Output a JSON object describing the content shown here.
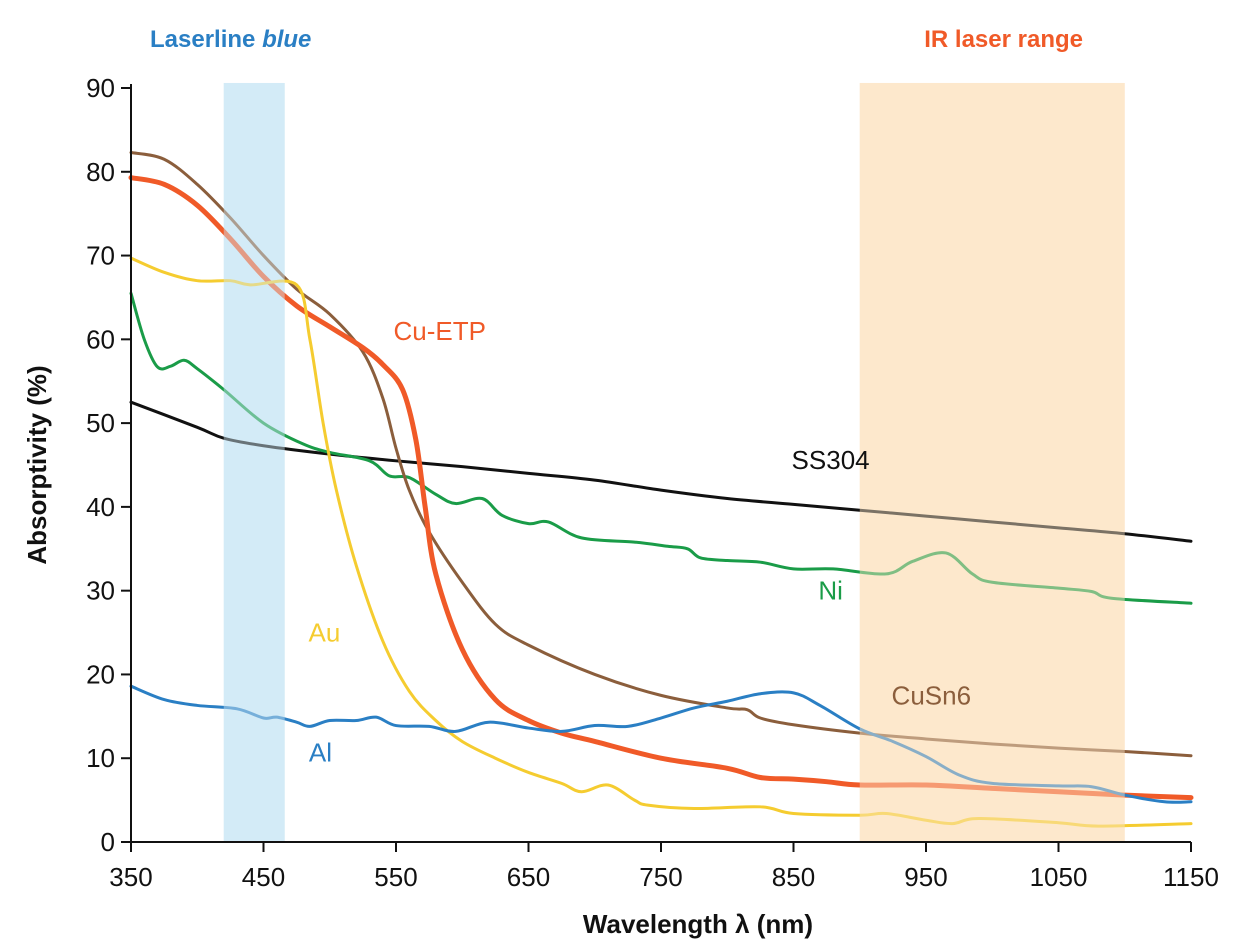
{
  "chart_data": {
    "type": "line",
    "xlabel": "Wavelength λ (nm)",
    "ylabel": "Absorptivity (%)",
    "xlim": [
      350,
      1150
    ],
    "ylim": [
      0,
      90
    ],
    "xticks": [
      350,
      450,
      550,
      650,
      750,
      850,
      950,
      1050,
      1150
    ],
    "yticks": [
      0,
      10,
      20,
      30,
      40,
      50,
      60,
      70,
      80,
      90
    ],
    "grid": false,
    "bands": [
      {
        "label_prefix": "Laserline ",
        "label_emph": "blue",
        "range": [
          420,
          466
        ],
        "color": "#d3ebf7",
        "label_color": "#2a7fc4"
      },
      {
        "label_prefix": "IR laser range",
        "label_emph": "",
        "range": [
          900,
          1100
        ],
        "color": "#fde8cc",
        "label_color": "#f05a28"
      }
    ],
    "series": [
      {
        "name": "SS304",
        "color": "#111111",
        "width": 3,
        "label_at": [
          878,
          45.6
        ],
        "points": [
          [
            350,
            52.5
          ],
          [
            400,
            49.5
          ],
          [
            420,
            48.2
          ],
          [
            450,
            47.3
          ],
          [
            500,
            46.3
          ],
          [
            550,
            45.5
          ],
          [
            600,
            44.8
          ],
          [
            650,
            44
          ],
          [
            700,
            43.2
          ],
          [
            750,
            42
          ],
          [
            800,
            41
          ],
          [
            850,
            40.3
          ],
          [
            900,
            39.6
          ],
          [
            950,
            38.9
          ],
          [
            1000,
            38.2
          ],
          [
            1050,
            37.5
          ],
          [
            1100,
            36.8
          ],
          [
            1150,
            35.9
          ]
        ]
      },
      {
        "name": "Ni",
        "color": "#1a9c48",
        "width": 3,
        "label_at": [
          878,
          30
        ],
        "points": [
          [
            350,
            65.5
          ],
          [
            360,
            60
          ],
          [
            370,
            56.7
          ],
          [
            380,
            56.8
          ],
          [
            390,
            57.5
          ],
          [
            400,
            56.5
          ],
          [
            420,
            54
          ],
          [
            450,
            50
          ],
          [
            480,
            47.5
          ],
          [
            500,
            46.5
          ],
          [
            530,
            45.5
          ],
          [
            545,
            43.7
          ],
          [
            560,
            43.5
          ],
          [
            580,
            41.5
          ],
          [
            595,
            40.4
          ],
          [
            615,
            41
          ],
          [
            630,
            39
          ],
          [
            650,
            38
          ],
          [
            665,
            38.2
          ],
          [
            690,
            36.3
          ],
          [
            730,
            35.8
          ],
          [
            755,
            35.3
          ],
          [
            770,
            35
          ],
          [
            780,
            33.9
          ],
          [
            800,
            33.6
          ],
          [
            825,
            33.4
          ],
          [
            850,
            32.6
          ],
          [
            880,
            32.6
          ],
          [
            920,
            32
          ],
          [
            940,
            33.5
          ],
          [
            965,
            34.5
          ],
          [
            985,
            32
          ],
          [
            1000,
            31
          ],
          [
            1050,
            30.3
          ],
          [
            1075,
            29.9
          ],
          [
            1090,
            29.1
          ],
          [
            1150,
            28.5
          ]
        ]
      },
      {
        "name": "CuSn6",
        "color": "#8b5e3c",
        "width": 3,
        "label_at": [
          954,
          17.5
        ],
        "points": [
          [
            350,
            82.3
          ],
          [
            375,
            81.5
          ],
          [
            400,
            78.5
          ],
          [
            425,
            74.5
          ],
          [
            450,
            70
          ],
          [
            475,
            66
          ],
          [
            500,
            63
          ],
          [
            525,
            58.5
          ],
          [
            540,
            53
          ],
          [
            550,
            47
          ],
          [
            560,
            42
          ],
          [
            575,
            37
          ],
          [
            600,
            31
          ],
          [
            625,
            26
          ],
          [
            650,
            23.5
          ],
          [
            700,
            20
          ],
          [
            750,
            17.5
          ],
          [
            800,
            16
          ],
          [
            815,
            15.8
          ],
          [
            825,
            14.8
          ],
          [
            850,
            14
          ],
          [
            900,
            13
          ],
          [
            950,
            12.3
          ],
          [
            1000,
            11.7
          ],
          [
            1050,
            11.2
          ],
          [
            1100,
            10.8
          ],
          [
            1150,
            10.3
          ]
        ]
      },
      {
        "name": "Cu-ETP",
        "color": "#f05a28",
        "width": 5,
        "label_at": [
          583,
          61
        ],
        "points": [
          [
            350,
            79.3
          ],
          [
            375,
            78.5
          ],
          [
            400,
            76
          ],
          [
            425,
            72
          ],
          [
            450,
            67.5
          ],
          [
            475,
            64
          ],
          [
            500,
            61.5
          ],
          [
            525,
            59
          ],
          [
            540,
            57
          ],
          [
            555,
            54
          ],
          [
            565,
            48
          ],
          [
            572,
            40
          ],
          [
            580,
            32
          ],
          [
            600,
            23
          ],
          [
            625,
            17
          ],
          [
            650,
            14.5
          ],
          [
            675,
            13
          ],
          [
            700,
            12
          ],
          [
            750,
            10
          ],
          [
            800,
            8.8
          ],
          [
            825,
            7.7
          ],
          [
            850,
            7.5
          ],
          [
            875,
            7.2
          ],
          [
            900,
            6.8
          ],
          [
            950,
            6.8
          ],
          [
            1000,
            6.4
          ],
          [
            1050,
            6
          ],
          [
            1100,
            5.6
          ],
          [
            1150,
            5.3
          ]
        ]
      },
      {
        "name": "Au",
        "color": "#f5cc30",
        "width": 3,
        "label_at": [
          496,
          25
        ],
        "points": [
          [
            350,
            69.7
          ],
          [
            375,
            68
          ],
          [
            400,
            67
          ],
          [
            425,
            67
          ],
          [
            440,
            66.5
          ],
          [
            475,
            66.5
          ],
          [
            485,
            60
          ],
          [
            495,
            50
          ],
          [
            505,
            42
          ],
          [
            520,
            33
          ],
          [
            540,
            24
          ],
          [
            560,
            18
          ],
          [
            580,
            14.5
          ],
          [
            600,
            12
          ],
          [
            625,
            10
          ],
          [
            650,
            8.3
          ],
          [
            675,
            7
          ],
          [
            690,
            6
          ],
          [
            710,
            6.8
          ],
          [
            730,
            5
          ],
          [
            740,
            4.4
          ],
          [
            775,
            4
          ],
          [
            825,
            4.2
          ],
          [
            850,
            3.4
          ],
          [
            900,
            3.2
          ],
          [
            920,
            3.4
          ],
          [
            950,
            2.6
          ],
          [
            970,
            2.2
          ],
          [
            990,
            2.8
          ],
          [
            1050,
            2.3
          ],
          [
            1080,
            1.9
          ],
          [
            1150,
            2.2
          ]
        ]
      },
      {
        "name": "Al",
        "color": "#2a7fc4",
        "width": 3,
        "label_at": [
          493,
          10.7
        ],
        "points": [
          [
            350,
            18.6
          ],
          [
            375,
            17
          ],
          [
            400,
            16.3
          ],
          [
            430,
            15.9
          ],
          [
            450,
            14.8
          ],
          [
            460,
            14.9
          ],
          [
            475,
            14.3
          ],
          [
            485,
            13.8
          ],
          [
            500,
            14.5
          ],
          [
            520,
            14.5
          ],
          [
            535,
            14.9
          ],
          [
            550,
            13.9
          ],
          [
            575,
            13.8
          ],
          [
            595,
            13.2
          ],
          [
            620,
            14.3
          ],
          [
            650,
            13.6
          ],
          [
            675,
            13.2
          ],
          [
            700,
            13.9
          ],
          [
            725,
            13.8
          ],
          [
            750,
            14.8
          ],
          [
            775,
            16
          ],
          [
            800,
            16.8
          ],
          [
            825,
            17.7
          ],
          [
            850,
            17.8
          ],
          [
            870,
            16.3
          ],
          [
            900,
            13.5
          ],
          [
            925,
            12
          ],
          [
            950,
            10.2
          ],
          [
            975,
            8
          ],
          [
            1000,
            7
          ],
          [
            1050,
            6.7
          ],
          [
            1075,
            6.6
          ],
          [
            1100,
            5.6
          ],
          [
            1130,
            4.8
          ],
          [
            1150,
            4.8
          ]
        ]
      }
    ]
  }
}
